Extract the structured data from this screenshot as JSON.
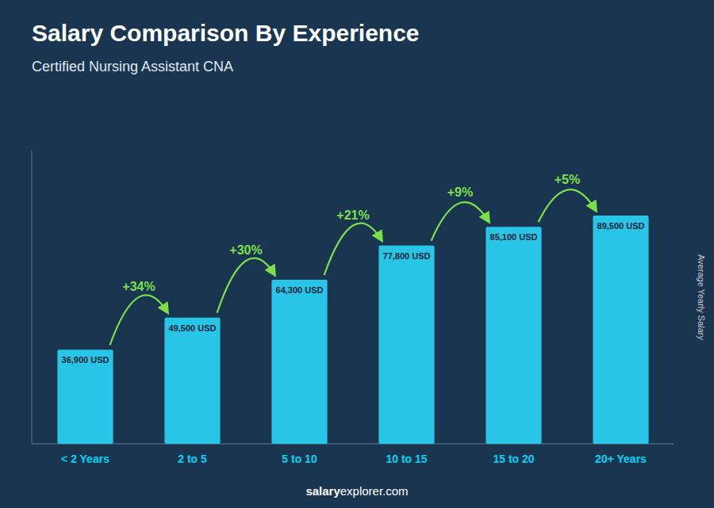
{
  "chart_data": {
    "type": "bar",
    "title": "Salary Comparison By Experience",
    "subtitle": "Certified Nursing Assistant CNA",
    "y_label": "Average Yearly Salary",
    "categories": [
      "< 2 Years",
      "2 to 5",
      "5 to 10",
      "10 to 15",
      "15 to 20",
      "20+ Years"
    ],
    "values": [
      36900,
      49500,
      64300,
      77800,
      85100,
      89500
    ],
    "value_labels": [
      "36,900 USD",
      "49,500 USD",
      "64,300 USD",
      "77,800 USD",
      "85,100 USD",
      "89,500 USD"
    ],
    "annotations": [
      "+34%",
      "+30%",
      "+21%",
      "+9%",
      "+5%"
    ],
    "footer": [
      "salary",
      "explorer.com"
    ],
    "color": "#29c5e6",
    "ylim": [
      0,
      115000
    ],
    "data_labels": true,
    "tick_labels": "x",
    "grid": false
  }
}
